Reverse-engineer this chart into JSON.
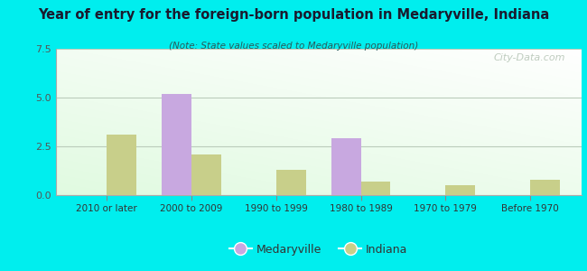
{
  "title": "Year of entry for the foreign-born population in Medaryville, Indiana",
  "subtitle": "(Note: State values scaled to Medaryville population)",
  "categories": [
    "2010 or later",
    "2000 to 2009",
    "1990 to 1999",
    "1980 to 1989",
    "1970 to 1979",
    "Before 1970"
  ],
  "medaryville": [
    0,
    5.2,
    0,
    2.9,
    0,
    0
  ],
  "indiana": [
    3.1,
    2.1,
    1.3,
    0.7,
    0.5,
    0.8
  ],
  "medaryville_color": "#c8a8e0",
  "indiana_color": "#c8cf8a",
  "ylim": [
    0,
    7.5
  ],
  "yticks": [
    0,
    2.5,
    5,
    7.5
  ],
  "background_outer": "#00eeee",
  "bar_width": 0.35,
  "legend_medaryville": "Medaryville",
  "legend_indiana": "Indiana",
  "watermark": "City-Data.com"
}
